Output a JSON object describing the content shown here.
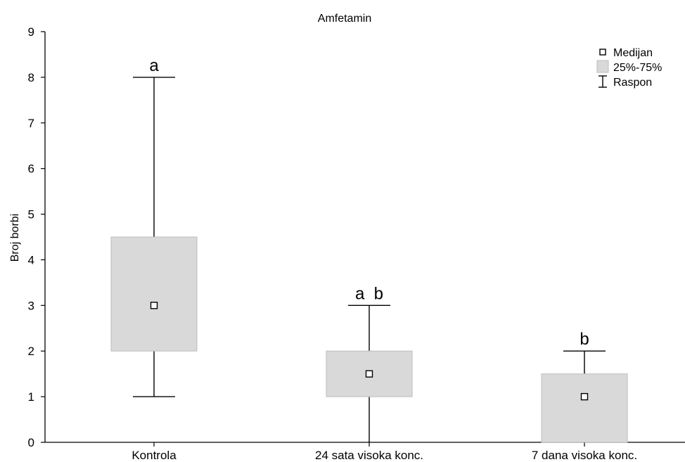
{
  "chart_data": {
    "type": "box",
    "title": "Amfetamin",
    "ylabel": "Broj borbi",
    "xlabel": "",
    "ylim": [
      0,
      9
    ],
    "yticks": [
      "0",
      "1",
      "2",
      "3",
      "4",
      "5",
      "6",
      "7",
      "8",
      "9"
    ],
    "categories": [
      "Kontrola",
      "24 sata visoka konc.",
      "7 dana visoka konc."
    ],
    "boxes": [
      {
        "category": "Kontrola",
        "min": 1,
        "q1": 2,
        "median": 3,
        "q3": 4.5,
        "max": 8,
        "annotation": "a"
      },
      {
        "category": "24 sata visoka konc.",
        "min": 0,
        "q1": 1,
        "median": 1.5,
        "q3": 2,
        "max": 3,
        "annotation": "a  b"
      },
      {
        "category": "7 dana visoka konc.",
        "min": 0,
        "q1": 0,
        "median": 1,
        "q3": 1.5,
        "max": 2,
        "annotation": "b"
      }
    ],
    "legend": {
      "position": "top-right",
      "items": [
        "Medijan",
        "25%-75%",
        "Raspon"
      ]
    },
    "grid": false,
    "colors": {
      "box_fill": "#d9d9d9",
      "median_fill": "#ffffff",
      "line": "#000000"
    }
  }
}
